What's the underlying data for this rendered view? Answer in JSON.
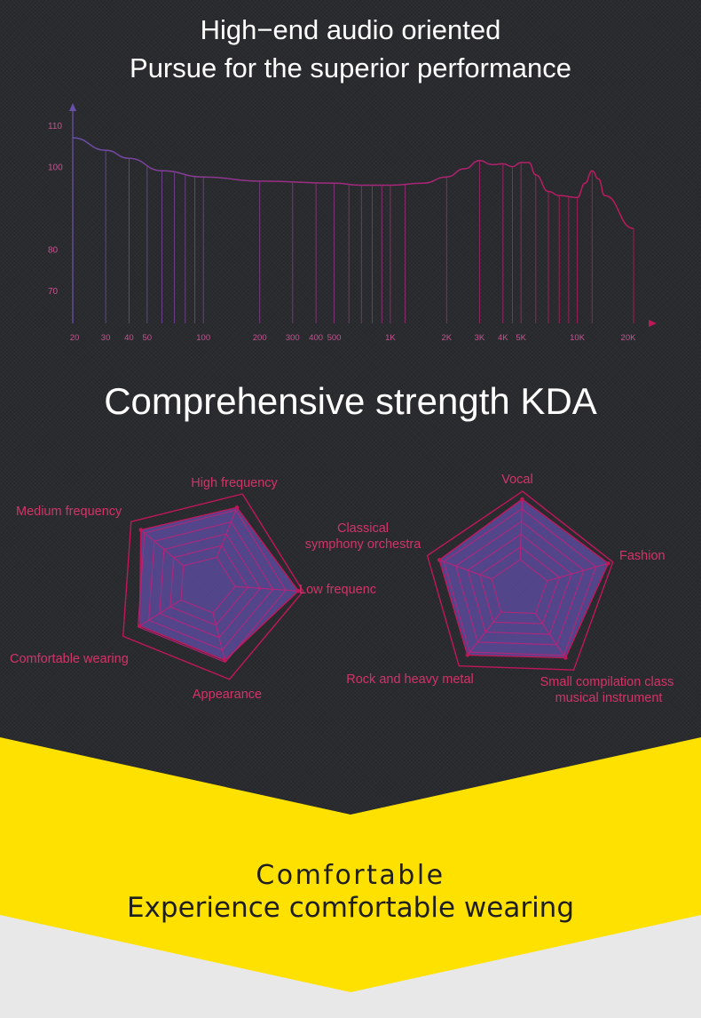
{
  "header": {
    "line1": "High−end audio oriented",
    "line2": "Pursue for the superior performance"
  },
  "section2": {
    "title": "Comprehensive strength KDA"
  },
  "chart_data": [
    {
      "type": "line",
      "x_ticks": [
        "20",
        "30",
        "40",
        "50",
        "100",
        "200",
        "300",
        "400",
        "500",
        "1K",
        "2K",
        "3K",
        "4K",
        "5K",
        "10K",
        "20K"
      ],
      "y_ticks": [
        "110",
        "100",
        "80",
        "70"
      ],
      "x": [
        20,
        30,
        40,
        60,
        100,
        200,
        500,
        700,
        1000,
        1500,
        2000,
        2500,
        3000,
        3500,
        4000,
        4500,
        5000,
        5500,
        6000,
        7000,
        8000,
        10000,
        11000,
        12000,
        13000,
        14000,
        20000
      ],
      "y": [
        107,
        104,
        102,
        99,
        97.5,
        96.5,
        96,
        95.5,
        95.5,
        96,
        97.5,
        99.5,
        101.5,
        100.5,
        100.7,
        100,
        101,
        101,
        98,
        94,
        93,
        92.5,
        96,
        99,
        97,
        93,
        85
      ],
      "color": "#c0175a",
      "color_start": "#6a4fa8",
      "ylim": [
        62,
        115
      ]
    },
    {
      "type": "radar",
      "axes": [
        "High frequency",
        "Low frequenc",
        "Appearance",
        "Comfortable wearing",
        "Medium frequency"
      ],
      "values": [
        0.85,
        0.95,
        0.8,
        0.8,
        0.87
      ],
      "max": 1,
      "fill": "#5a4a9a",
      "line": "#c0175a"
    },
    {
      "type": "radar",
      "axes": [
        "Vocal",
        "Fashion",
        "Small compilation class musical instrument",
        "Rock and heavy metal",
        "Classical symphony orchestra"
      ],
      "values": [
        0.92,
        0.95,
        0.85,
        0.86,
        0.87
      ],
      "max": 1,
      "fill": "#5a4a9a",
      "line": "#c0175a"
    }
  ],
  "radar_left_labels": {
    "top": "High frequency",
    "right": "Low frequenc",
    "bottom": "Appearance",
    "left_low": "Comfortable wearing",
    "left_high": "Medium frequency"
  },
  "radar_right_labels": {
    "top": "Vocal",
    "right": "Fashion",
    "bottom_right_1": "Small compilation class",
    "bottom_right_2": "musical instrument",
    "bottom_left": "Rock and heavy metal",
    "left_1": "Classical",
    "left_2": "symphony orchestra"
  },
  "footer": {
    "title": "Comfortable",
    "subtitle": "Experience comfortable wearing"
  },
  "colors": {
    "dark_bg": "#2a2b2f",
    "yellow": "#ffe100",
    "light_gray": "#e8e8e8",
    "accent": "#d43368"
  }
}
